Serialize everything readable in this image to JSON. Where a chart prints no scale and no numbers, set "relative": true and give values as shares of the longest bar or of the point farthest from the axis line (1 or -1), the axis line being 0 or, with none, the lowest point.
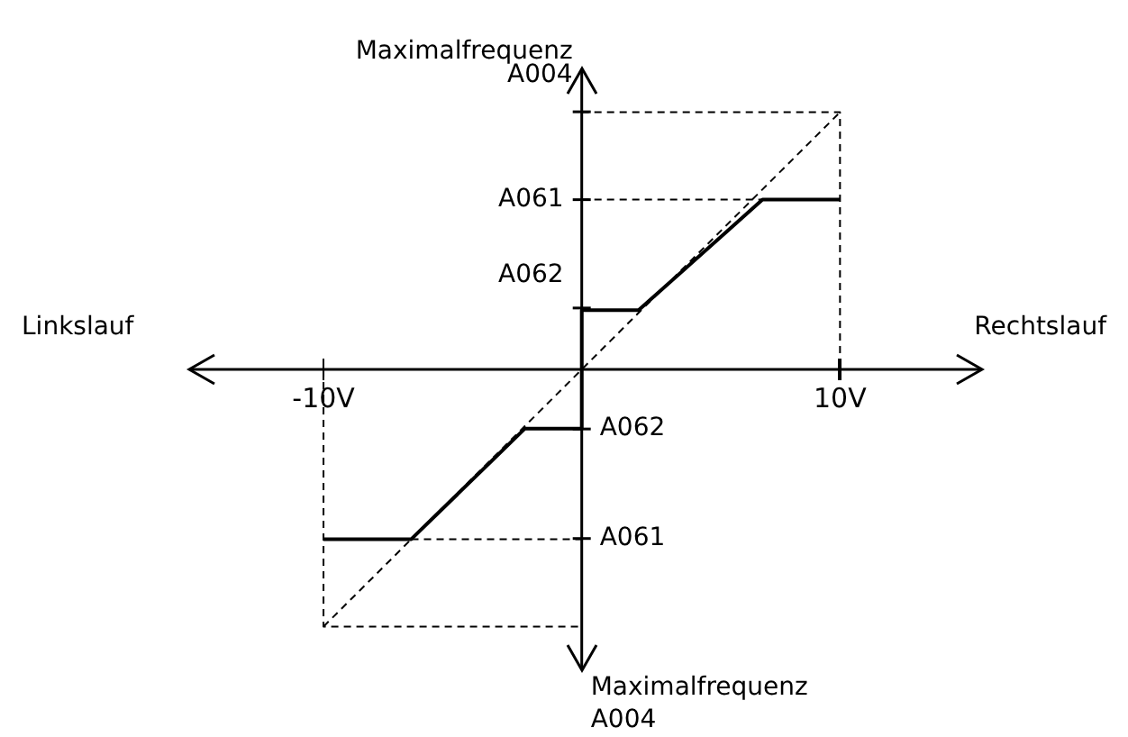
{
  "chart_data": {
    "type": "line",
    "relative": true,
    "legend": false,
    "grid": false,
    "marker": "none",
    "xlim": [
      -15.2,
      15.5
    ],
    "xticks": [
      {
        "value": -10,
        "label": "-10V"
      },
      {
        "value": 10,
        "label": "10V"
      }
    ],
    "series": [
      {
        "color": "#000000",
        "line_style": "solid",
        "x": [
          -10,
          -6.6,
          -2.2,
          0,
          0,
          2.2,
          7,
          10
        ],
        "values": [
          -0.66,
          -0.66,
          -0.23,
          -0.23,
          0.23,
          0.23,
          0.66,
          0.66
        ]
      },
      {
        "color": "#000000",
        "line_style": "dashed",
        "x": [
          -10,
          10
        ],
        "values": [
          -1,
          1
        ]
      },
      {
        "color": "#000000",
        "line_style": "dashed",
        "x": [
          0,
          10,
          10
        ],
        "values": [
          1,
          1,
          0
        ]
      },
      {
        "color": "#000000",
        "line_style": "dashed",
        "x": [
          -10,
          -10,
          0
        ],
        "values": [
          0,
          -1,
          -1
        ]
      },
      {
        "color": "#000000",
        "line_style": "dashed",
        "x": [
          0,
          7
        ],
        "values": [
          0.66,
          0.66
        ]
      },
      {
        "color": "#000000",
        "line_style": "dashed",
        "x": [
          -6.6,
          0
        ],
        "values": [
          -0.66,
          -0.66
        ]
      }
    ],
    "annotations": [
      "Maximalfrequenz",
      "Linkslauf",
      "Rechtslauf",
      "Maximalfrequenz A004",
      "A004",
      "A061",
      "A062",
      "A062",
      "A061"
    ]
  }
}
